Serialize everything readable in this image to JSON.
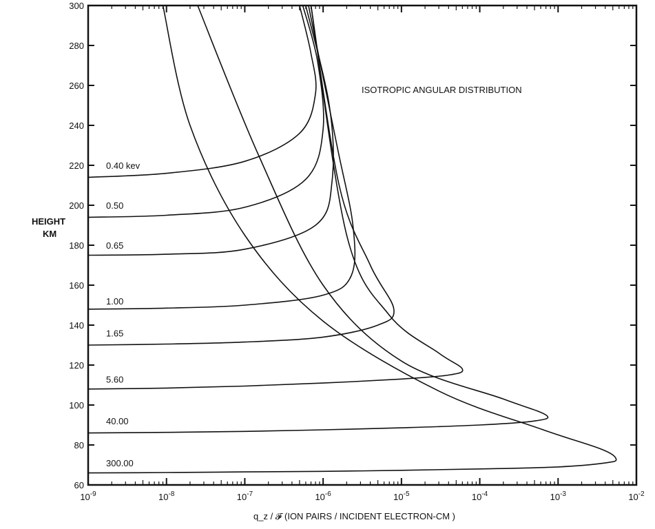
{
  "chart_data": {
    "type": "line",
    "annotation": "ISOTROPIC ANGULAR DISTRIBUTION",
    "ylabel_line1": "HEIGHT",
    "ylabel_line2": "KM",
    "xlabel": "q_z / 𝓕 (ION PAIRS / INCIDENT ELECTRON-CM )",
    "x_scale": "log",
    "xlim": [
      1e-09,
      0.01
    ],
    "ylim": [
      60,
      300
    ],
    "x_ticks": [
      {
        "base": "10",
        "exp": "-9"
      },
      {
        "base": "10",
        "exp": "-8"
      },
      {
        "base": "10",
        "exp": "-7"
      },
      {
        "base": "10",
        "exp": "-6"
      },
      {
        "base": "10",
        "exp": "-5"
      },
      {
        "base": "10",
        "exp": "-4"
      },
      {
        "base": "10",
        "exp": "-3"
      },
      {
        "base": "10",
        "exp": "-2"
      }
    ],
    "y_ticks": [
      "60",
      "80",
      "100",
      "120",
      "140",
      "160",
      "180",
      "200",
      "220",
      "240",
      "260",
      "280",
      "300"
    ],
    "grid": false,
    "series": [
      {
        "name": "0.40 kev",
        "label_y": 220,
        "points": [
          [
            1e-09,
            214
          ],
          [
            1e-08,
            216
          ],
          [
            1e-07,
            222
          ],
          [
            5e-07,
            236
          ],
          [
            8e-07,
            256
          ],
          [
            7e-07,
            276
          ],
          [
            5e-07,
            300
          ]
        ]
      },
      {
        "name": "0.50",
        "label_y": 200,
        "points": [
          [
            1e-09,
            194
          ],
          [
            1e-08,
            195
          ],
          [
            1e-07,
            199
          ],
          [
            6e-07,
            213
          ],
          [
            1e-06,
            238
          ],
          [
            8.5e-07,
            272
          ],
          [
            5.5e-07,
            300
          ]
        ]
      },
      {
        "name": "0.65",
        "label_y": 180,
        "points": [
          [
            1e-09,
            175
          ],
          [
            1e-08,
            175.5
          ],
          [
            1e-07,
            178
          ],
          [
            8e-07,
            190
          ],
          [
            1.3e-06,
            212
          ],
          [
            1.2e-06,
            250
          ],
          [
            6e-07,
            300
          ]
        ]
      },
      {
        "name": "1.00",
        "label_y": 152,
        "points": [
          [
            1e-09,
            148
          ],
          [
            1e-08,
            148.5
          ],
          [
            1e-07,
            150
          ],
          [
            1e-06,
            155
          ],
          [
            2.3e-06,
            165
          ],
          [
            2.4e-06,
            190
          ],
          [
            1.5e-06,
            230
          ],
          [
            6.5e-07,
            300
          ]
        ]
      },
      {
        "name": "1.65",
        "label_y": 136,
        "points": [
          [
            1e-09,
            130
          ],
          [
            1e-08,
            130.5
          ],
          [
            1e-07,
            131.5
          ],
          [
            1e-06,
            134
          ],
          [
            5e-06,
            140
          ],
          [
            8e-06,
            148
          ],
          [
            4e-06,
            170
          ],
          [
            1.6e-06,
            210
          ],
          [
            7e-07,
            300
          ]
        ]
      },
      {
        "name": "5.60",
        "label_y": 113,
        "points": [
          [
            1e-09,
            108
          ],
          [
            1e-08,
            108.5
          ],
          [
            1e-07,
            109.5
          ],
          [
            1e-06,
            111
          ],
          [
            1e-05,
            113
          ],
          [
            4e-05,
            115
          ],
          [
            6e-05,
            118
          ],
          [
            3e-05,
            126
          ],
          [
            7e-06,
            145
          ],
          [
            2e-06,
            185
          ],
          [
            7e-07,
            300
          ]
        ]
      },
      {
        "name": "40.00",
        "label_y": 92,
        "points": [
          [
            1e-09,
            86
          ],
          [
            1e-08,
            86.3
          ],
          [
            1e-07,
            86.8
          ],
          [
            1e-06,
            87.6
          ],
          [
            1e-05,
            88.6
          ],
          [
            0.0001,
            90
          ],
          [
            0.0005,
            92
          ],
          [
            0.0007,
            95
          ],
          [
            0.0002,
            103
          ],
          [
            1e-05,
            122
          ],
          [
            1e-06,
            160
          ],
          [
            1.5e-07,
            225
          ],
          [
            2.5e-08,
            300
          ]
        ]
      },
      {
        "name": "300.00",
        "label_y": 71,
        "points": [
          [
            1e-09,
            66
          ],
          [
            1e-08,
            66.2
          ],
          [
            1e-07,
            66.5
          ],
          [
            1e-06,
            66.8
          ],
          [
            1e-05,
            67.3
          ],
          [
            0.0001,
            68
          ],
          [
            0.001,
            69
          ],
          [
            0.004,
            71
          ],
          [
            0.0055,
            73
          ],
          [
            0.0035,
            78
          ],
          [
            0.0006,
            88
          ],
          [
            3e-05,
            107
          ],
          [
            1e-06,
            142
          ],
          [
            1e-07,
            185
          ],
          [
            2e-08,
            240
          ],
          [
            9e-09,
            300
          ]
        ]
      }
    ]
  }
}
